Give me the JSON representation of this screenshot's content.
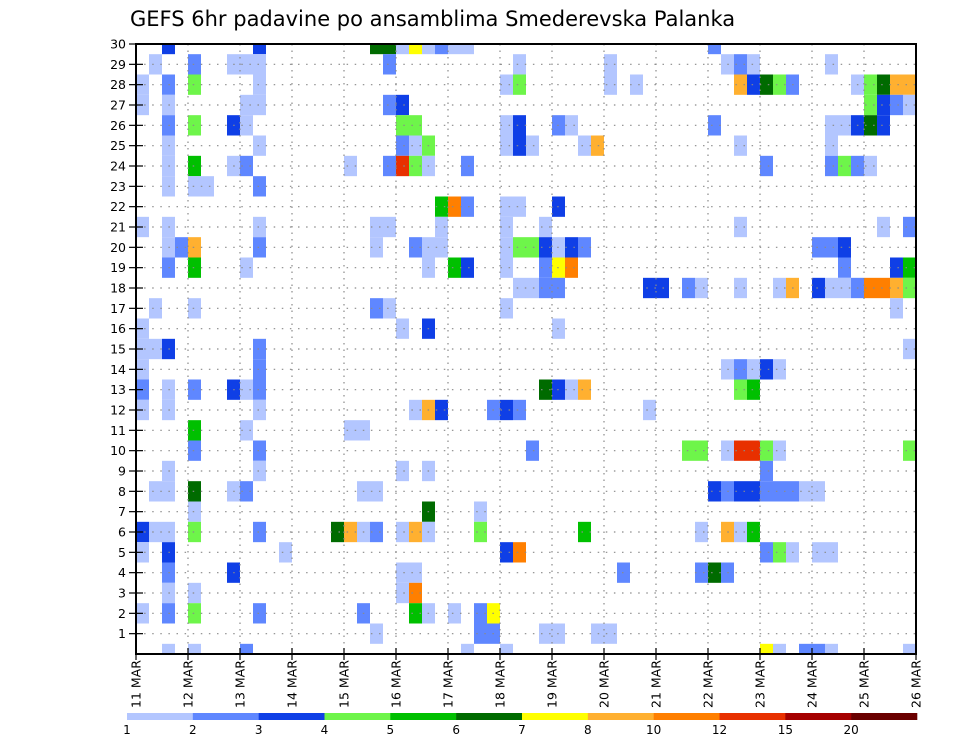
{
  "chart_data": {
    "type": "heatmap",
    "title": "GEFS 6hr padavine po ansamblima Smederevska Palanka",
    "xlabel": "",
    "ylabel": "",
    "x_tick_labels": [
      "11 MAR",
      "12 MAR",
      "13 MAR",
      "14 MAR",
      "15 MAR",
      "16 MAR",
      "17 MAR",
      "18 MAR",
      "19 MAR",
      "20 MAR",
      "21 MAR",
      "22 MAR",
      "23 MAR",
      "24 MAR",
      "25 MAR",
      "26 MAR"
    ],
    "x_step_hours": 6,
    "x_steps_per_day": 4,
    "y_tick_labels": [
      "1",
      "2",
      "3",
      "4",
      "5",
      "6",
      "7",
      "8",
      "9",
      "10",
      "11",
      "12",
      "13",
      "14",
      "15",
      "16",
      "17",
      "18",
      "19",
      "20",
      "21",
      "22",
      "23",
      "24",
      "25",
      "26",
      "27",
      "28",
      "29",
      "30"
    ],
    "ylim": [
      0,
      30
    ],
    "grid": true,
    "colorbar": {
      "labels": [
        "1",
        "2",
        "3",
        "4",
        "5",
        "6",
        "7",
        "8",
        "10",
        "12",
        "15",
        "20"
      ],
      "colors": [
        "#b3c6ff",
        "#5f87ff",
        "#0f3fe6",
        "#6ef54a",
        "#00c000",
        "#006b00",
        "#ffff00",
        "#ffb030",
        "#ff7f00",
        "#e83000",
        "#a50000",
        "#6a0000"
      ]
    },
    "cells_note": "each cell: [member_row, step_index_from_11MAR_00z, color_level 1-12]",
    "cells": [
      [
        30,
        2,
        3
      ],
      [
        30,
        9,
        3
      ],
      [
        30,
        18,
        6
      ],
      [
        30,
        19,
        6
      ],
      [
        30,
        20,
        1
      ],
      [
        30,
        21,
        7
      ],
      [
        30,
        22,
        1
      ],
      [
        30,
        23,
        2
      ],
      [
        30,
        24,
        1
      ],
      [
        30,
        25,
        1
      ],
      [
        30,
        44,
        2
      ],
      [
        29,
        1,
        1
      ],
      [
        29,
        4,
        2
      ],
      [
        29,
        7,
        1
      ],
      [
        29,
        8,
        1
      ],
      [
        29,
        9,
        1
      ],
      [
        29,
        19,
        2
      ],
      [
        29,
        29,
        1
      ],
      [
        29,
        36,
        1
      ],
      [
        29,
        45,
        1
      ],
      [
        29,
        46,
        2
      ],
      [
        29,
        47,
        1
      ],
      [
        29,
        53,
        1
      ],
      [
        28,
        0,
        1
      ],
      [
        28,
        2,
        2
      ],
      [
        28,
        4,
        4
      ],
      [
        28,
        9,
        1
      ],
      [
        28,
        28,
        1
      ],
      [
        28,
        29,
        4
      ],
      [
        28,
        36,
        1
      ],
      [
        28,
        38,
        1
      ],
      [
        28,
        46,
        8
      ],
      [
        28,
        47,
        3
      ],
      [
        28,
        48,
        6
      ],
      [
        28,
        49,
        4
      ],
      [
        28,
        50,
        2
      ],
      [
        28,
        55,
        1
      ],
      [
        28,
        56,
        4
      ],
      [
        28,
        57,
        6
      ],
      [
        28,
        58,
        8
      ],
      [
        28,
        59,
        8
      ],
      [
        27,
        0,
        1
      ],
      [
        27,
        2,
        1
      ],
      [
        27,
        8,
        1
      ],
      [
        27,
        9,
        1
      ],
      [
        27,
        19,
        2
      ],
      [
        27,
        20,
        3
      ],
      [
        27,
        56,
        4
      ],
      [
        27,
        57,
        3
      ],
      [
        27,
        58,
        2
      ],
      [
        27,
        59,
        1
      ],
      [
        26,
        2,
        2
      ],
      [
        26,
        4,
        4
      ],
      [
        26,
        7,
        3
      ],
      [
        26,
        8,
        1
      ],
      [
        26,
        20,
        4
      ],
      [
        26,
        21,
        4
      ],
      [
        26,
        28,
        1
      ],
      [
        26,
        29,
        3
      ],
      [
        26,
        32,
        2
      ],
      [
        26,
        33,
        1
      ],
      [
        26,
        44,
        2
      ],
      [
        26,
        53,
        1
      ],
      [
        26,
        54,
        1
      ],
      [
        26,
        55,
        3
      ],
      [
        26,
        56,
        6
      ],
      [
        26,
        57,
        3
      ],
      [
        25,
        2,
        1
      ],
      [
        25,
        9,
        1
      ],
      [
        25,
        20,
        2
      ],
      [
        25,
        21,
        1
      ],
      [
        25,
        22,
        4
      ],
      [
        25,
        28,
        1
      ],
      [
        25,
        29,
        3
      ],
      [
        25,
        30,
        1
      ],
      [
        25,
        34,
        1
      ],
      [
        25,
        35,
        8
      ],
      [
        25,
        46,
        1
      ],
      [
        25,
        53,
        1
      ],
      [
        24,
        2,
        1
      ],
      [
        24,
        4,
        5
      ],
      [
        24,
        7,
        1
      ],
      [
        24,
        8,
        2
      ],
      [
        24,
        16,
        1
      ],
      [
        24,
        19,
        2
      ],
      [
        24,
        20,
        10
      ],
      [
        24,
        21,
        4
      ],
      [
        24,
        22,
        1
      ],
      [
        24,
        25,
        2
      ],
      [
        24,
        48,
        2
      ],
      [
        24,
        53,
        2
      ],
      [
        24,
        54,
        4
      ],
      [
        24,
        55,
        2
      ],
      [
        24,
        56,
        1
      ],
      [
        23,
        2,
        1
      ],
      [
        23,
        4,
        1
      ],
      [
        23,
        5,
        1
      ],
      [
        23,
        9,
        2
      ],
      [
        22,
        23,
        5
      ],
      [
        22,
        24,
        9
      ],
      [
        22,
        25,
        2
      ],
      [
        22,
        28,
        1
      ],
      [
        22,
        29,
        1
      ],
      [
        22,
        32,
        3
      ],
      [
        21,
        0,
        1
      ],
      [
        21,
        2,
        1
      ],
      [
        21,
        9,
        1
      ],
      [
        21,
        18,
        1
      ],
      [
        21,
        19,
        1
      ],
      [
        21,
        23,
        1
      ],
      [
        21,
        28,
        1
      ],
      [
        21,
        31,
        1
      ],
      [
        21,
        46,
        1
      ],
      [
        21,
        57,
        1
      ],
      [
        21,
        59,
        2
      ],
      [
        20,
        2,
        1
      ],
      [
        20,
        3,
        2
      ],
      [
        20,
        4,
        8
      ],
      [
        20,
        9,
        2
      ],
      [
        20,
        18,
        1
      ],
      [
        20,
        21,
        2
      ],
      [
        20,
        22,
        1
      ],
      [
        20,
        23,
        1
      ],
      [
        20,
        28,
        1
      ],
      [
        20,
        29,
        4
      ],
      [
        20,
        30,
        4
      ],
      [
        20,
        31,
        3
      ],
      [
        20,
        32,
        1
      ],
      [
        20,
        33,
        3
      ],
      [
        20,
        34,
        2
      ],
      [
        20,
        52,
        2
      ],
      [
        20,
        53,
        2
      ],
      [
        20,
        54,
        3
      ],
      [
        19,
        2,
        2
      ],
      [
        19,
        4,
        5
      ],
      [
        19,
        8,
        1
      ],
      [
        19,
        22,
        1
      ],
      [
        19,
        24,
        5
      ],
      [
        19,
        25,
        3
      ],
      [
        19,
        28,
        1
      ],
      [
        19,
        31,
        2
      ],
      [
        19,
        32,
        7
      ],
      [
        19,
        33,
        9
      ],
      [
        19,
        54,
        2
      ],
      [
        19,
        58,
        3
      ],
      [
        19,
        59,
        5
      ],
      [
        18,
        29,
        1
      ],
      [
        18,
        30,
        1
      ],
      [
        18,
        31,
        2
      ],
      [
        18,
        32,
        2
      ],
      [
        18,
        39,
        3
      ],
      [
        18,
        40,
        3
      ],
      [
        18,
        42,
        2
      ],
      [
        18,
        43,
        1
      ],
      [
        18,
        46,
        1
      ],
      [
        18,
        49,
        1
      ],
      [
        18,
        50,
        8
      ],
      [
        18,
        52,
        3
      ],
      [
        18,
        53,
        1
      ],
      [
        18,
        54,
        1
      ],
      [
        18,
        55,
        2
      ],
      [
        18,
        56,
        9
      ],
      [
        18,
        57,
        9
      ],
      [
        18,
        58,
        8
      ],
      [
        18,
        59,
        4
      ],
      [
        17,
        1,
        1
      ],
      [
        17,
        4,
        1
      ],
      [
        17,
        18,
        2
      ],
      [
        17,
        19,
        1
      ],
      [
        17,
        28,
        1
      ],
      [
        17,
        58,
        1
      ],
      [
        16,
        0,
        1
      ],
      [
        16,
        20,
        1
      ],
      [
        16,
        22,
        3
      ],
      [
        16,
        32,
        1
      ],
      [
        15,
        0,
        1
      ],
      [
        15,
        1,
        1
      ],
      [
        15,
        2,
        3
      ],
      [
        15,
        9,
        2
      ],
      [
        15,
        59,
        1
      ],
      [
        14,
        0,
        1
      ],
      [
        14,
        9,
        2
      ],
      [
        14,
        45,
        1
      ],
      [
        14,
        46,
        2
      ],
      [
        14,
        47,
        1
      ],
      [
        14,
        48,
        3
      ],
      [
        14,
        49,
        1
      ],
      [
        13,
        0,
        2
      ],
      [
        13,
        2,
        1
      ],
      [
        13,
        4,
        2
      ],
      [
        13,
        7,
        3
      ],
      [
        13,
        8,
        1
      ],
      [
        13,
        9,
        2
      ],
      [
        13,
        31,
        6
      ],
      [
        13,
        32,
        3
      ],
      [
        13,
        33,
        1
      ],
      [
        13,
        34,
        8
      ],
      [
        13,
        46,
        4
      ],
      [
        13,
        47,
        5
      ],
      [
        12,
        0,
        1
      ],
      [
        12,
        2,
        1
      ],
      [
        12,
        9,
        1
      ],
      [
        12,
        21,
        1
      ],
      [
        12,
        22,
        8
      ],
      [
        12,
        23,
        3
      ],
      [
        12,
        27,
        2
      ],
      [
        12,
        28,
        3
      ],
      [
        12,
        29,
        2
      ],
      [
        12,
        39,
        1
      ],
      [
        11,
        4,
        5
      ],
      [
        11,
        8,
        1
      ],
      [
        11,
        16,
        1
      ],
      [
        11,
        17,
        1
      ],
      [
        10,
        4,
        2
      ],
      [
        10,
        9,
        2
      ],
      [
        10,
        30,
        2
      ],
      [
        10,
        42,
        4
      ],
      [
        10,
        43,
        4
      ],
      [
        10,
        45,
        1
      ],
      [
        10,
        46,
        10
      ],
      [
        10,
        47,
        10
      ],
      [
        10,
        48,
        4
      ],
      [
        10,
        49,
        1
      ],
      [
        10,
        59,
        4
      ],
      [
        9,
        2,
        1
      ],
      [
        9,
        9,
        1
      ],
      [
        9,
        20,
        1
      ],
      [
        9,
        22,
        1
      ],
      [
        9,
        48,
        2
      ],
      [
        8,
        1,
        1
      ],
      [
        8,
        2,
        1
      ],
      [
        8,
        4,
        6
      ],
      [
        8,
        7,
        1
      ],
      [
        8,
        8,
        2
      ],
      [
        8,
        17,
        1
      ],
      [
        8,
        18,
        1
      ],
      [
        8,
        44,
        3
      ],
      [
        8,
        45,
        2
      ],
      [
        8,
        46,
        3
      ],
      [
        8,
        47,
        3
      ],
      [
        8,
        48,
        2
      ],
      [
        8,
        49,
        2
      ],
      [
        8,
        50,
        2
      ],
      [
        8,
        51,
        1
      ],
      [
        8,
        52,
        1
      ],
      [
        7,
        4,
        1
      ],
      [
        7,
        22,
        6
      ],
      [
        7,
        26,
        1
      ],
      [
        6,
        0,
        3
      ],
      [
        6,
        1,
        1
      ],
      [
        6,
        2,
        1
      ],
      [
        6,
        4,
        4
      ],
      [
        6,
        9,
        2
      ],
      [
        6,
        15,
        6
      ],
      [
        6,
        16,
        8
      ],
      [
        6,
        17,
        1
      ],
      [
        6,
        18,
        2
      ],
      [
        6,
        20,
        1
      ],
      [
        6,
        21,
        8
      ],
      [
        6,
        22,
        1
      ],
      [
        6,
        26,
        4
      ],
      [
        6,
        34,
        5
      ],
      [
        6,
        43,
        1
      ],
      [
        6,
        45,
        8
      ],
      [
        6,
        46,
        1
      ],
      [
        6,
        47,
        5
      ],
      [
        5,
        0,
        1
      ],
      [
        5,
        2,
        3
      ],
      [
        5,
        11,
        1
      ],
      [
        5,
        28,
        3
      ],
      [
        5,
        29,
        9
      ],
      [
        5,
        48,
        2
      ],
      [
        5,
        49,
        4
      ],
      [
        5,
        50,
        1
      ],
      [
        5,
        52,
        1
      ],
      [
        5,
        53,
        1
      ],
      [
        4,
        2,
        2
      ],
      [
        4,
        7,
        3
      ],
      [
        4,
        20,
        1
      ],
      [
        4,
        21,
        1
      ],
      [
        4,
        37,
        2
      ],
      [
        4,
        43,
        2
      ],
      [
        4,
        44,
        6
      ],
      [
        4,
        45,
        2
      ],
      [
        3,
        2,
        1
      ],
      [
        3,
        4,
        1
      ],
      [
        3,
        20,
        1
      ],
      [
        3,
        21,
        9
      ],
      [
        2,
        0,
        1
      ],
      [
        2,
        2,
        2
      ],
      [
        2,
        4,
        4
      ],
      [
        2,
        9,
        2
      ],
      [
        2,
        17,
        2
      ],
      [
        2,
        21,
        5
      ],
      [
        2,
        22,
        1
      ],
      [
        2,
        24,
        1
      ],
      [
        2,
        26,
        2
      ],
      [
        2,
        27,
        7
      ],
      [
        1,
        18,
        1
      ],
      [
        1,
        26,
        2
      ],
      [
        1,
        27,
        2
      ],
      [
        1,
        31,
        1
      ],
      [
        1,
        32,
        1
      ],
      [
        1,
        35,
        1
      ],
      [
        1,
        36,
        1
      ],
      [
        0,
        2,
        1
      ],
      [
        0,
        4,
        1
      ],
      [
        0,
        8,
        2
      ],
      [
        0,
        25,
        1
      ],
      [
        0,
        28,
        1
      ],
      [
        0,
        48,
        7
      ],
      [
        0,
        49,
        1
      ],
      [
        0,
        51,
        2
      ],
      [
        0,
        52,
        2
      ],
      [
        0,
        53,
        1
      ],
      [
        0,
        59,
        1
      ]
    ]
  }
}
